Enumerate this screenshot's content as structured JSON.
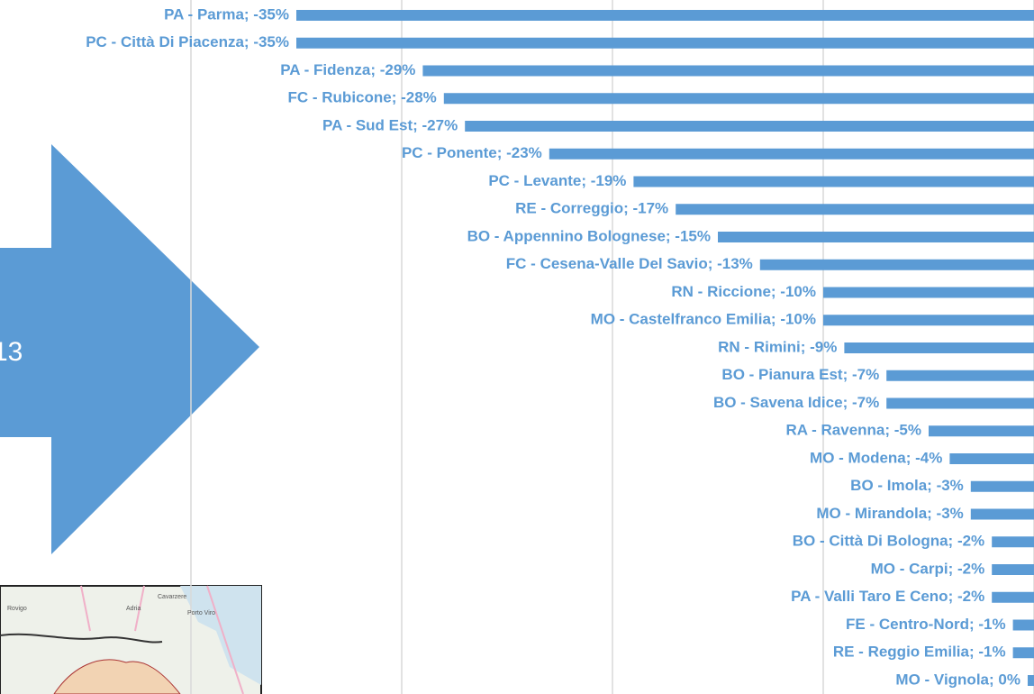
{
  "chart_data": {
    "type": "bar",
    "orientation": "horizontal",
    "categories": [
      "PA - Parma; -35%",
      "PC - Città Di Piacenza; -35%",
      "PA - Fidenza; -29%",
      "FC - Rubicone; -28%",
      "PA - Sud Est; -27%",
      "PC - Ponente; -23%",
      "PC - Levante; -19%",
      "RE - Correggio; -17%",
      "BO - Appennino Bolognese; -15%",
      "FC - Cesena-Valle Del Savio; -13%",
      "RN - Riccione; -10%",
      "MO - Castelfranco Emilia; -10%",
      "RN - Rimini; -9%",
      "BO - Pianura Est; -7%",
      "BO - Savena Idice; -7%",
      "RA - Ravenna; -5%",
      "MO - Modena; -4%",
      "BO - Imola; -3%",
      "MO - Mirandola; -3%",
      "BO - Città Di Bologna; -2%",
      "MO - Carpi; -2%",
      "PA - Valli Taro E Ceno; -2%",
      "FE - Centro-Nord; -1%",
      "RE - Reggio Emilia; -1%",
      "MO - Vignola; 0%"
    ],
    "values": [
      -35,
      -35,
      -29,
      -28,
      -27,
      -23,
      -19,
      -17,
      -15,
      -13,
      -10,
      -10,
      -9,
      -7,
      -7,
      -5,
      -4,
      -3,
      -3,
      -2,
      -2,
      -2,
      -1,
      -1,
      -0.3
    ],
    "color": "#5b9bd5",
    "xlim": [
      -40,
      0
    ],
    "xticks": [
      -40,
      -30,
      -20,
      -10,
      0
    ],
    "grid": true
  },
  "arrow": {
    "text": "13"
  },
  "map": {
    "labels": [
      "Cavarzere",
      "Rovigo",
      "Adria",
      "Porto Viro"
    ]
  }
}
